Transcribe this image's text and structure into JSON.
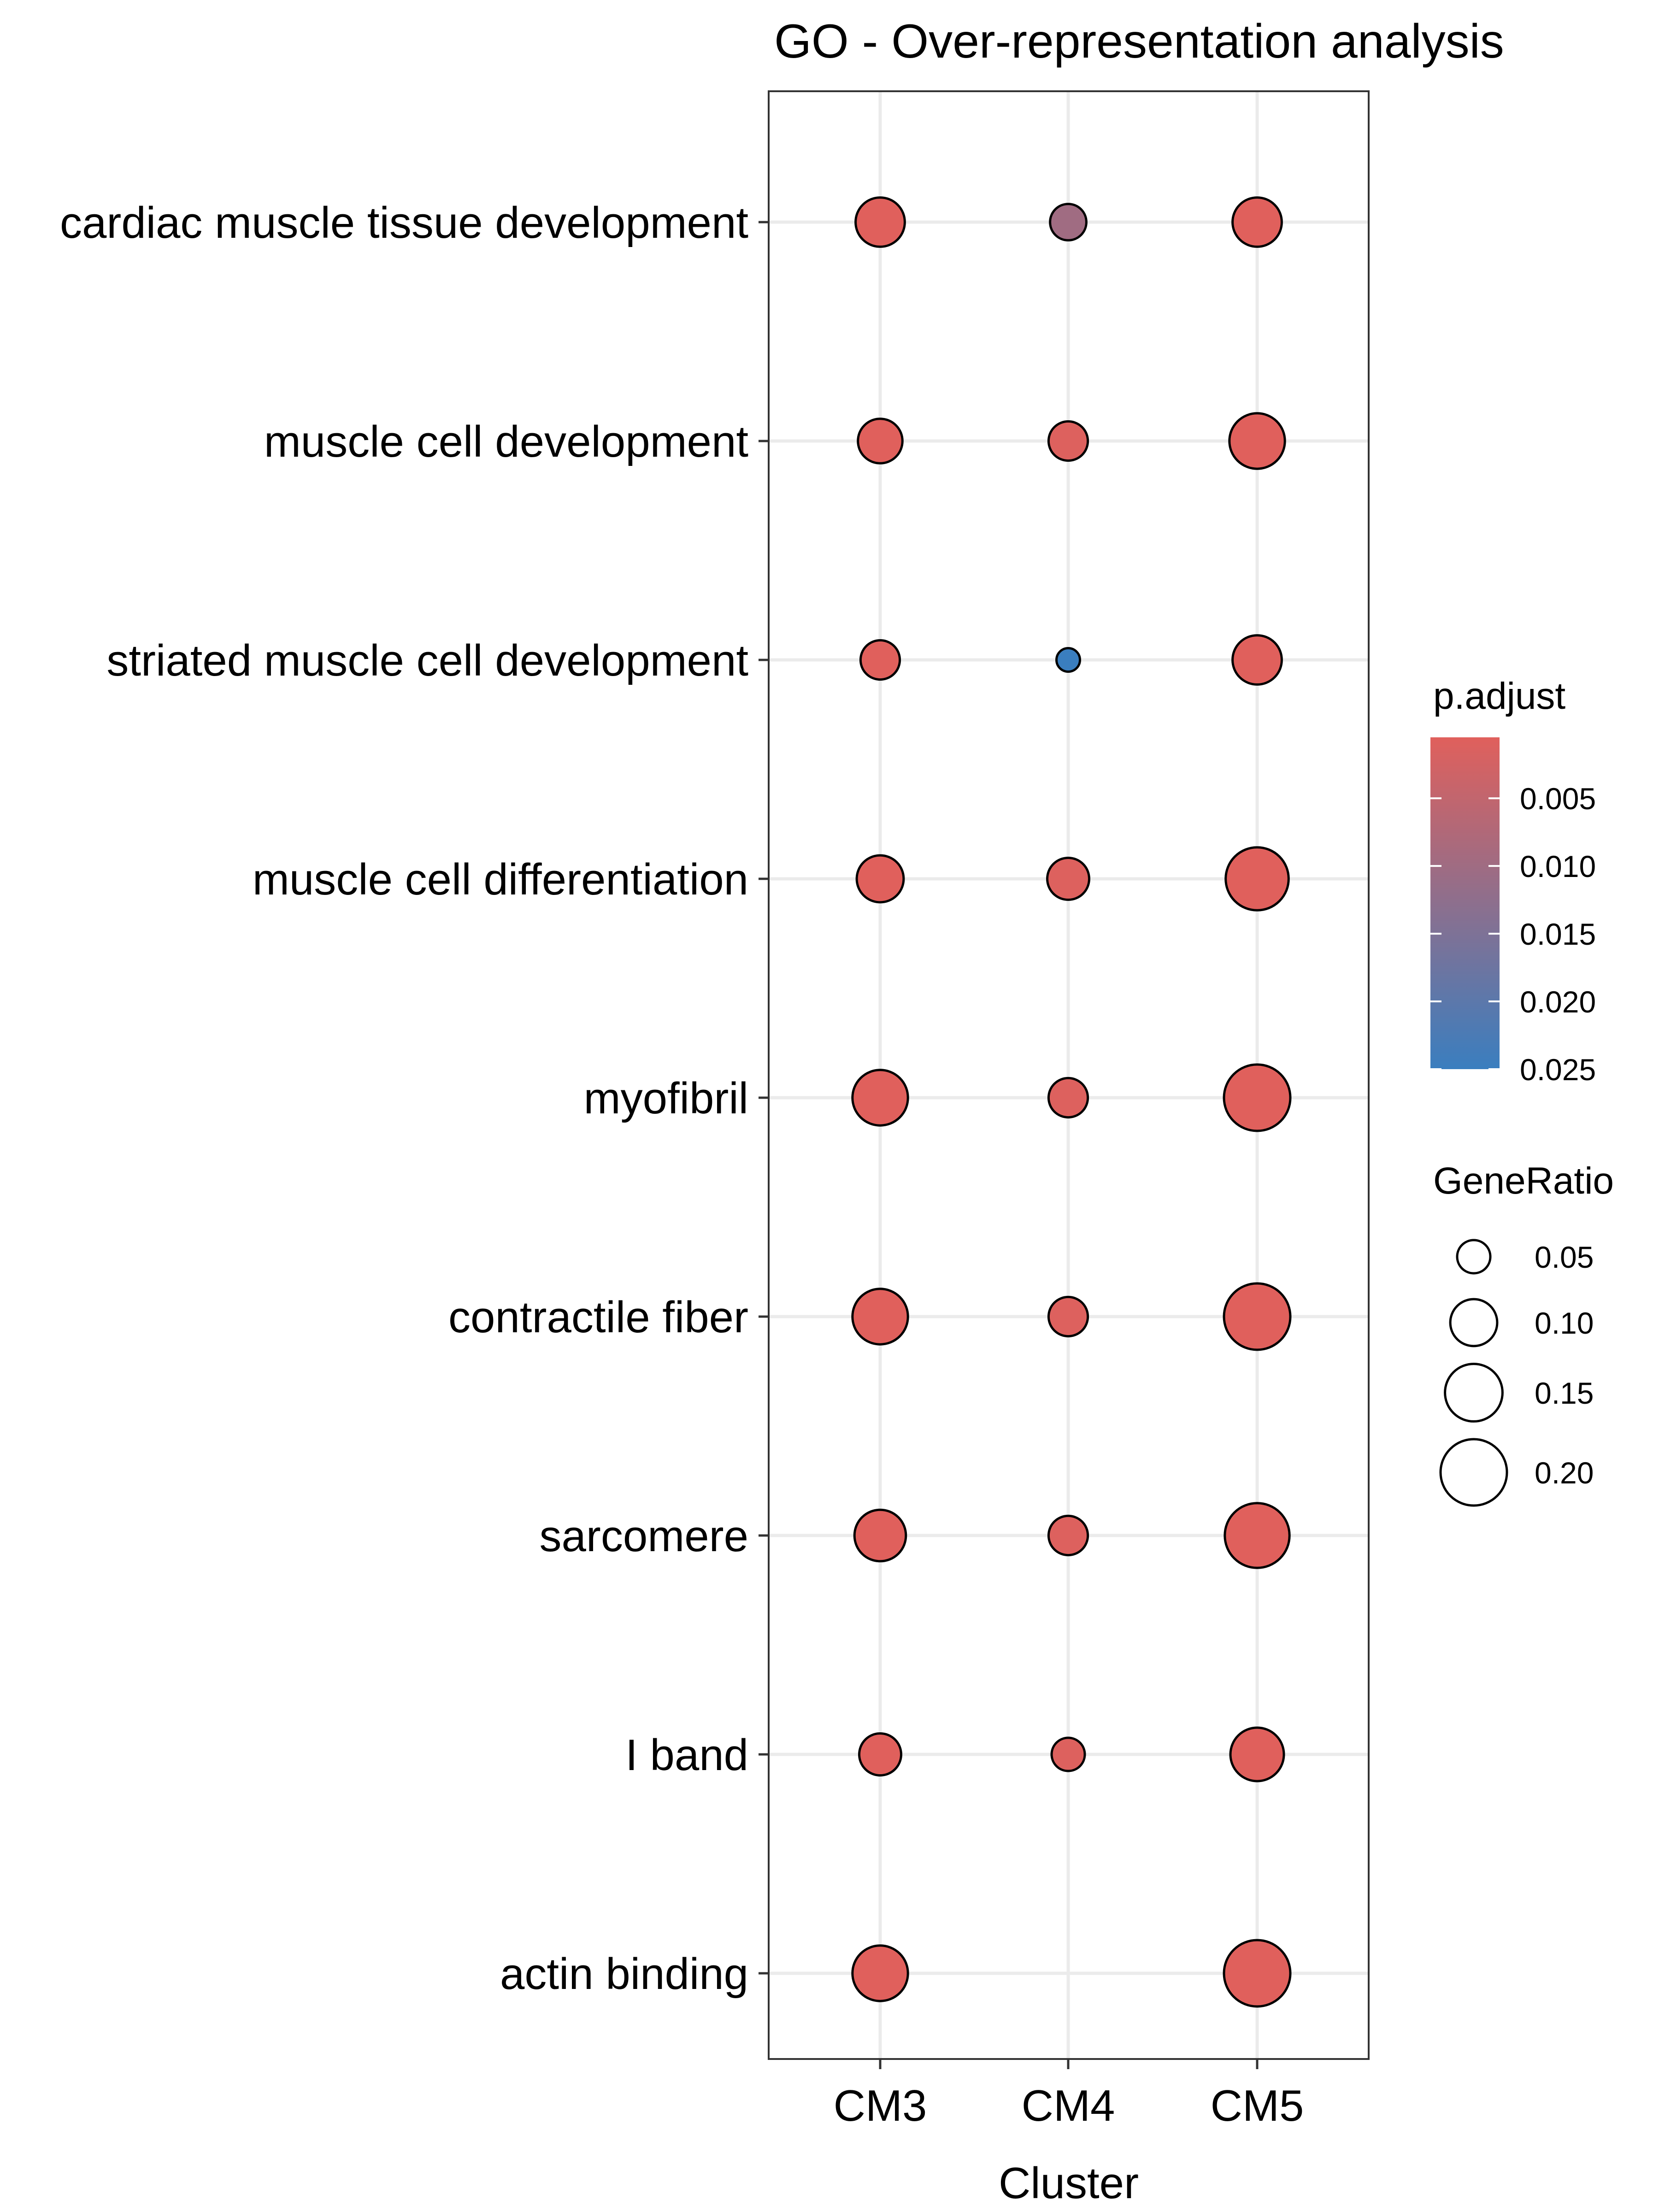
{
  "chart_data": {
    "type": "scatter",
    "title": "GO - Over-representation analysis",
    "xlabel": "Cluster",
    "ylabel": "",
    "x_categories": [
      "CM3",
      "CM4",
      "CM5"
    ],
    "y_categories": [
      "cardiac muscle tissue development",
      "muscle cell development",
      "striated muscle cell development",
      "muscle cell differentiation",
      "myofibril",
      "contractile fiber",
      "sarcomere",
      "I band",
      "actin binding"
    ],
    "points": [
      {
        "term": "cardiac muscle tissue development",
        "cluster": "CM3",
        "gene_ratio": 0.11,
        "p_adjust": 0.0005
      },
      {
        "term": "cardiac muscle tissue development",
        "cluster": "CM4",
        "gene_ratio": 0.06,
        "p_adjust": 0.01
      },
      {
        "term": "cardiac muscle tissue development",
        "cluster": "CM5",
        "gene_ratio": 0.11,
        "p_adjust": 0.0005
      },
      {
        "term": "muscle cell development",
        "cluster": "CM3",
        "gene_ratio": 0.09,
        "p_adjust": 0.0005
      },
      {
        "term": "muscle cell development",
        "cluster": "CM4",
        "gene_ratio": 0.07,
        "p_adjust": 0.001
      },
      {
        "term": "muscle cell development",
        "cluster": "CM5",
        "gene_ratio": 0.14,
        "p_adjust": 0.0005
      },
      {
        "term": "striated muscle cell development",
        "cluster": "CM3",
        "gene_ratio": 0.07,
        "p_adjust": 0.0005
      },
      {
        "term": "striated muscle cell development",
        "cluster": "CM4",
        "gene_ratio": 0.025,
        "p_adjust": 0.025
      },
      {
        "term": "striated muscle cell development",
        "cluster": "CM5",
        "gene_ratio": 0.11,
        "p_adjust": 0.0005
      },
      {
        "term": "muscle cell differentiation",
        "cluster": "CM3",
        "gene_ratio": 0.1,
        "p_adjust": 0.0005
      },
      {
        "term": "muscle cell differentiation",
        "cluster": "CM4",
        "gene_ratio": 0.08,
        "p_adjust": 0.001
      },
      {
        "term": "muscle cell differentiation",
        "cluster": "CM5",
        "gene_ratio": 0.18,
        "p_adjust": 0.0005
      },
      {
        "term": "myofibril",
        "cluster": "CM3",
        "gene_ratio": 0.14,
        "p_adjust": 0.0005
      },
      {
        "term": "myofibril",
        "cluster": "CM4",
        "gene_ratio": 0.07,
        "p_adjust": 0.001
      },
      {
        "term": "myofibril",
        "cluster": "CM5",
        "gene_ratio": 0.2,
        "p_adjust": 0.0005
      },
      {
        "term": "contractile fiber",
        "cluster": "CM3",
        "gene_ratio": 0.14,
        "p_adjust": 0.0005
      },
      {
        "term": "contractile fiber",
        "cluster": "CM4",
        "gene_ratio": 0.07,
        "p_adjust": 0.001
      },
      {
        "term": "contractile fiber",
        "cluster": "CM5",
        "gene_ratio": 0.2,
        "p_adjust": 0.0005
      },
      {
        "term": "sarcomere",
        "cluster": "CM3",
        "gene_ratio": 0.12,
        "p_adjust": 0.0005
      },
      {
        "term": "sarcomere",
        "cluster": "CM4",
        "gene_ratio": 0.07,
        "p_adjust": 0.001
      },
      {
        "term": "sarcomere",
        "cluster": "CM5",
        "gene_ratio": 0.19,
        "p_adjust": 0.0005
      },
      {
        "term": "I band",
        "cluster": "CM3",
        "gene_ratio": 0.08,
        "p_adjust": 0.0005
      },
      {
        "term": "I band",
        "cluster": "CM4",
        "gene_ratio": 0.05,
        "p_adjust": 0.001
      },
      {
        "term": "I band",
        "cluster": "CM5",
        "gene_ratio": 0.13,
        "p_adjust": 0.0005
      },
      {
        "term": "actin binding",
        "cluster": "CM3",
        "gene_ratio": 0.14,
        "p_adjust": 0.0005
      },
      {
        "term": "actin binding",
        "cluster": "CM5",
        "gene_ratio": 0.2,
        "p_adjust": 0.0005
      }
    ],
    "color_legend": {
      "title": "p.adjust",
      "breaks": [
        0.005,
        0.01,
        0.015,
        0.02,
        0.025
      ],
      "break_labels": [
        "0.005",
        "0.010",
        "0.015",
        "0.020",
        "0.025"
      ],
      "range": [
        0.0005,
        0.025
      ],
      "low_color": "#e0605c",
      "high_color": "#3a7ebf"
    },
    "size_legend": {
      "title": "GeneRatio",
      "breaks": [
        0.05,
        0.1,
        0.15,
        0.2
      ],
      "break_labels": [
        "0.05",
        "0.10",
        "0.15",
        "0.20"
      ]
    },
    "grid": true,
    "legend_position": "right"
  }
}
